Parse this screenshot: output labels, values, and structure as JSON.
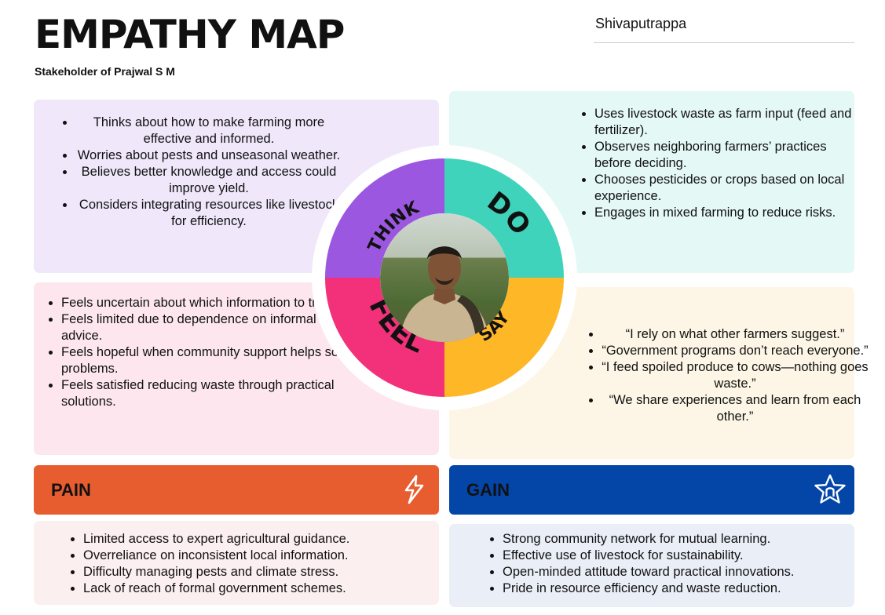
{
  "header": {
    "title": "EMPATHY MAP",
    "subtitle": "Stakeholder of Prajwal S M",
    "stakeholder_name": "Shivaputrappa"
  },
  "colors": {
    "think": "#9b57e0",
    "do": "#3fd3bb",
    "feel": "#f2317a",
    "say": "#fdb727",
    "pain": "#e85d30",
    "gain": "#0445a8"
  },
  "quadrants": {
    "think": {
      "label": "THINK",
      "items": [
        "Thinks about how to make farming more effective and informed.",
        "Worries about pests and unseasonal weather.",
        "Believes better knowledge and access could improve yield.",
        "Considers integrating resources like livestock for efficiency."
      ]
    },
    "do": {
      "label": "DO",
      "items": [
        "Uses livestock waste as farm input (feed and fertilizer).",
        "Observes neighboring farmers’ practices before deciding.",
        "Chooses pesticides or crops based on local experience.",
        "Engages in mixed farming to reduce risks."
      ]
    },
    "feel": {
      "label": "FEEL",
      "items": [
        "Feels uncertain about which information to trust.",
        "Feels limited due to dependence on informal advice.",
        "Feels hopeful when community support helps solve problems.",
        "Feels satisfied reducing waste through practical solutions."
      ]
    },
    "say": {
      "label": "SAY",
      "items": [
        "“I rely on what other farmers suggest.”",
        "“Government programs don’t reach everyone.”",
        "“I feed spoiled produce to cows—nothing goes waste.”",
        "“We share experiences and learn from each other.”"
      ]
    }
  },
  "pain": {
    "label": "PAIN",
    "icon": "lightning-icon",
    "items": [
      "Limited access to expert agricultural guidance.",
      "Overreliance on inconsistent local information.",
      "Difficulty managing pests and climate stress.",
      "Lack of reach of formal government schemes."
    ]
  },
  "gain": {
    "label": "GAIN",
    "icon": "star-icon",
    "items": [
      "Strong community network for mutual learning.",
      "Effective use of livestock for sustainability.",
      "Open-minded attitude toward practical innovations.",
      "Pride in resource efficiency and waste reduction."
    ]
  }
}
